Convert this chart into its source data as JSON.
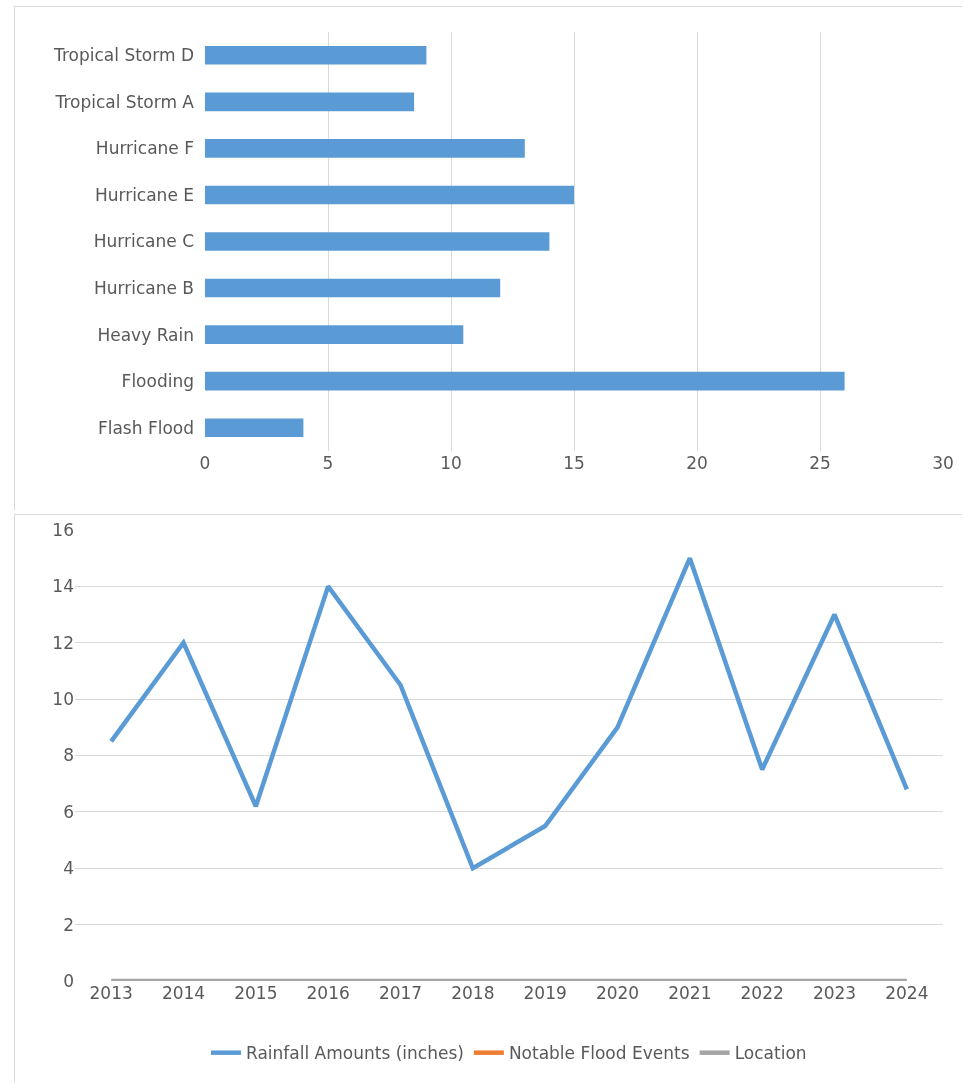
{
  "chart_data": [
    {
      "type": "bar",
      "orientation": "horizontal",
      "categories": [
        "Tropical Storm D",
        "Tropical Storm A",
        "Hurricane F",
        "Hurricane E",
        "Hurricane C",
        "Hurricane B",
        "Heavy Rain",
        "Flooding",
        "Flash Flood"
      ],
      "series": [
        {
          "color": "#5b9bd5",
          "values": [
            9,
            8.5,
            13,
            15,
            14,
            12,
            10.5,
            26,
            4
          ]
        }
      ],
      "xlim": [
        0,
        30
      ],
      "xticks": [
        0,
        5,
        10,
        15,
        20,
        25,
        30
      ],
      "grid": "x",
      "legend": false
    },
    {
      "type": "line",
      "categories": [
        "2013",
        "2014",
        "2015",
        "2016",
        "2017",
        "2018",
        "2019",
        "2020",
        "2021",
        "2022",
        "2023",
        "2024"
      ],
      "series": [
        {
          "name": "Rainfall Amounts (inches)",
          "color": "#5b9bd5",
          "values": [
            8.5,
            12,
            6.2,
            14,
            10.5,
            4,
            5.5,
            9,
            15,
            7.5,
            13,
            6.8
          ]
        },
        {
          "name": "Notable Flood Events",
          "color": "#ed7d31",
          "values": [
            null,
            null,
            null,
            null,
            null,
            null,
            null,
            null,
            null,
            null,
            null,
            null
          ]
        },
        {
          "name": "Location",
          "color": "#a5a5a5",
          "values": [
            0,
            0,
            0,
            0,
            0,
            0,
            0,
            0,
            0,
            0,
            0,
            0
          ]
        }
      ],
      "ylim": [
        0,
        16
      ],
      "yticks": [
        0,
        2,
        4,
        6,
        8,
        10,
        12,
        14,
        16
      ],
      "grid": "y",
      "legend": "bottom",
      "marker": "none",
      "line_style": "solid"
    }
  ]
}
